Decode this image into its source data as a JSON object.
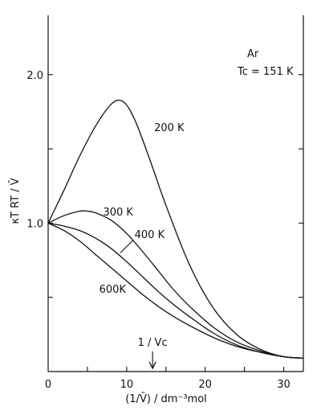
{
  "chart_data": {
    "type": "line",
    "xlabel": "(1/V̄) / dm⁻³mol",
    "ylabel": "κT RT / V̄",
    "xlim": [
      0,
      32.5
    ],
    "ylim": [
      0,
      2.4
    ],
    "x_ticks": [
      0,
      10,
      20,
      30
    ],
    "y_ticks": [
      1.0,
      2.0
    ],
    "x_tick_labels": [
      "0",
      "10",
      "20",
      "30"
    ],
    "y_tick_labels": [
      "1.0",
      "2.0"
    ],
    "grid": false,
    "legend": "none",
    "annotations": {
      "substance": "Ar",
      "critical_temp": "Tc = 151 K",
      "critical_marker_label": "1 / Vc",
      "critical_marker_x": 13.3
    },
    "series": [
      {
        "name": "200 K",
        "label_x": 13.5,
        "label_y": 1.62,
        "x": [
          0,
          2,
          4,
          6,
          8,
          9.5,
          11,
          13,
          15,
          18,
          21,
          24,
          27,
          30,
          32.5
        ],
        "y": [
          1.0,
          1.22,
          1.45,
          1.65,
          1.8,
          1.82,
          1.7,
          1.42,
          1.12,
          0.72,
          0.43,
          0.25,
          0.15,
          0.1,
          0.09
        ]
      },
      {
        "name": "300 K",
        "label_x": 7.0,
        "label_y": 1.05,
        "x": [
          0,
          2,
          4,
          5,
          6,
          8,
          10,
          12,
          14,
          16,
          18,
          21,
          24,
          27,
          30,
          32.5
        ],
        "y": [
          1.0,
          1.05,
          1.08,
          1.08,
          1.07,
          1.02,
          0.93,
          0.81,
          0.68,
          0.55,
          0.44,
          0.3,
          0.2,
          0.14,
          0.1,
          0.09
        ]
      },
      {
        "name": "400 K",
        "label_x": 11.0,
        "label_y": 0.9,
        "x": [
          0,
          2,
          4,
          6,
          8,
          10,
          12,
          14,
          16,
          18,
          21,
          24,
          27,
          30,
          32.5
        ],
        "y": [
          1.0,
          0.98,
          0.95,
          0.9,
          0.83,
          0.74,
          0.64,
          0.54,
          0.45,
          0.37,
          0.26,
          0.18,
          0.13,
          0.1,
          0.09
        ]
      },
      {
        "name": "600K",
        "label_x": 6.5,
        "label_y": 0.53,
        "x": [
          0,
          2,
          4,
          6,
          8,
          10,
          12,
          14,
          16,
          18,
          21,
          24,
          27,
          30,
          32.5
        ],
        "y": [
          1.0,
          0.95,
          0.88,
          0.79,
          0.7,
          0.61,
          0.52,
          0.44,
          0.37,
          0.31,
          0.23,
          0.17,
          0.13,
          0.1,
          0.09
        ]
      }
    ]
  }
}
